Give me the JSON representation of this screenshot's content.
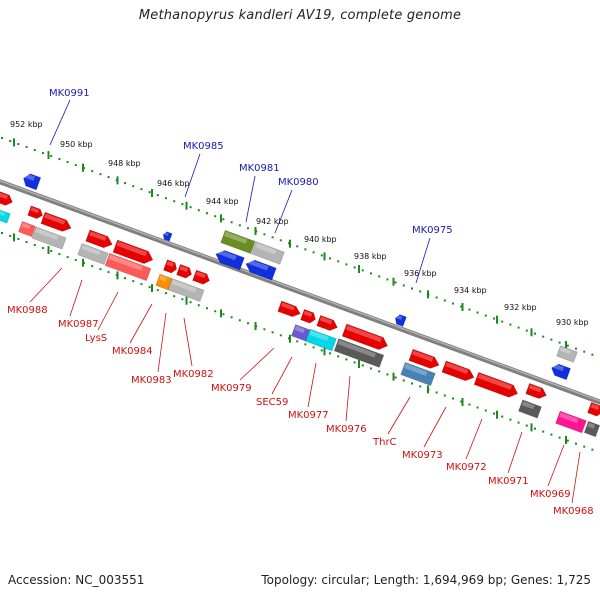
{
  "title": "Methanopyrus kandleri AV19, complete genome",
  "footer": {
    "accession": "Accession: NC_003551",
    "summary": "Topology: circular; Length: 1,694,969 bp; Genes: 1,725"
  },
  "colors": {
    "forward": "#e60000",
    "forward_light": "#ff5a5a",
    "reverse": "#1030e0",
    "gray": "#b4b4b4",
    "dark_gray": "#5a5a5a",
    "olive": "#6b8e23",
    "cyan": "#00d8e8",
    "orange": "#ff8c00",
    "steel_blue": "#4682b4",
    "slate_blue": "#6a5acd",
    "magenta": "#ff1493",
    "backbone": "#808080",
    "tick_green": "#1a8a1a"
  },
  "kbp_labels": [
    "952 kbp",
    "950 kbp",
    "948 kbp",
    "946 kbp",
    "944 kbp",
    "942 kbp",
    "940 kbp",
    "938 kbp",
    "936 kbp",
    "934 kbp",
    "932 kbp",
    "930 kbp"
  ],
  "top_labels": [
    "MK0991",
    "MK0985",
    "MK0981",
    "MK0980",
    "MK0975"
  ],
  "bottom_labels": [
    "MK0988",
    "MK0987",
    "LysS",
    "MK0984",
    "MK0983",
    "MK0982",
    "MK0979",
    "SEC59",
    "MK0977",
    "MK0976",
    "ThrC",
    "MK0973",
    "MK0972",
    "MK0971",
    "MK0969",
    "MK0968"
  ]
}
